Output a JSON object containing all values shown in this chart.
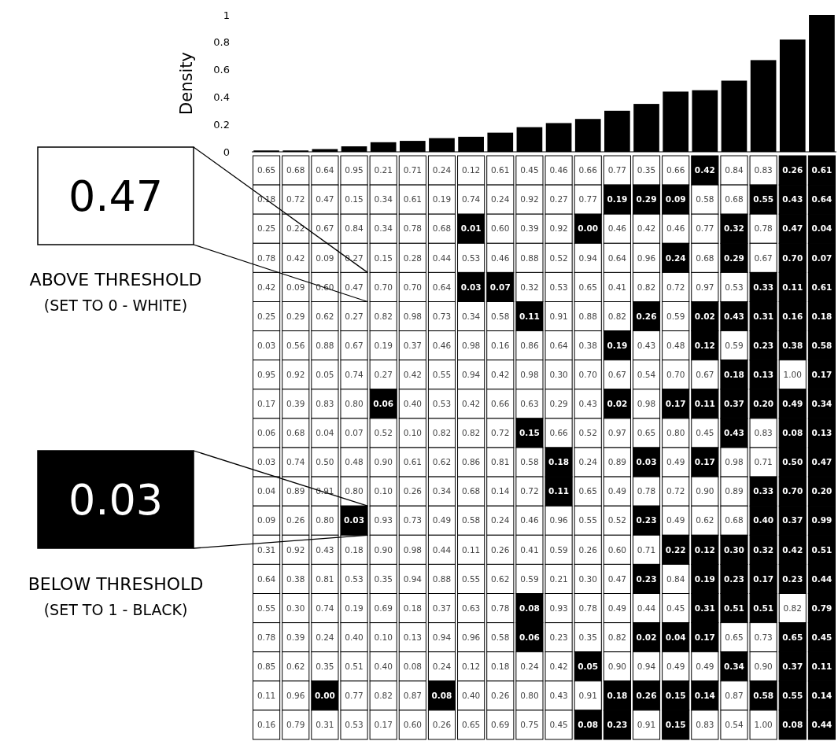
{
  "chart_data": [
    {
      "type": "bar",
      "ylabel": "Density",
      "categories": [
        null,
        null,
        null,
        null,
        null,
        null,
        null,
        null,
        null,
        null,
        null,
        null,
        null,
        null,
        null,
        null,
        null,
        null,
        null,
        null
      ],
      "values": [
        0.01,
        0.01,
        0.02,
        0.04,
        0.07,
        0.08,
        0.1,
        0.11,
        0.14,
        0.18,
        0.21,
        0.24,
        0.3,
        0.35,
        0.44,
        0.45,
        0.52,
        0.67,
        0.82,
        1.0
      ],
      "color": "#000000",
      "ylim": [
        0,
        1
      ],
      "yticks": [
        0,
        0.2,
        0.4,
        0.6,
        0.8,
        1
      ],
      "tick_labels": "y",
      "grid": false
    },
    {
      "type": "heatmap",
      "categories": [
        null,
        null,
        null,
        null,
        null,
        null,
        null,
        null,
        null,
        null,
        null,
        null,
        null,
        null,
        null,
        null,
        null,
        null,
        null,
        null
      ],
      "y_categories": [
        null,
        null,
        null,
        null,
        null,
        null,
        null,
        null,
        null,
        null,
        null,
        null,
        null,
        null,
        null,
        null,
        null,
        null,
        null,
        null
      ],
      "tick_labels": false,
      "cells": [
        [
          0.65,
          0.68,
          0.64,
          0.95,
          0.21,
          0.71,
          0.24,
          0.12,
          0.61,
          0.45,
          0.46,
          0.66,
          0.77,
          0.35,
          0.66,
          0.42,
          0.84,
          0.83,
          0.26,
          0.61
        ],
        [
          0.18,
          0.72,
          0.47,
          0.15,
          0.34,
          0.61,
          0.19,
          0.74,
          0.24,
          0.92,
          0.27,
          0.77,
          0.19,
          0.29,
          0.09,
          0.58,
          0.68,
          0.55,
          0.43,
          0.64
        ],
        [
          0.25,
          0.22,
          0.67,
          0.84,
          0.34,
          0.78,
          0.68,
          0.01,
          0.6,
          0.39,
          0.92,
          0.0,
          0.46,
          0.42,
          0.46,
          0.77,
          0.32,
          0.78,
          0.47,
          0.04
        ],
        [
          0.78,
          0.42,
          0.09,
          0.27,
          0.15,
          0.28,
          0.44,
          0.53,
          0.46,
          0.88,
          0.52,
          0.94,
          0.64,
          0.96,
          0.24,
          0.68,
          0.29,
          0.67,
          0.7,
          0.07
        ],
        [
          0.42,
          0.09,
          0.6,
          0.47,
          0.7,
          0.7,
          0.64,
          0.03,
          0.07,
          0.32,
          0.53,
          0.65,
          0.41,
          0.82,
          0.72,
          0.97,
          0.53,
          0.33,
          0.11,
          0.61
        ],
        [
          0.25,
          0.29,
          0.62,
          0.27,
          0.82,
          0.98,
          0.73,
          0.34,
          0.58,
          0.11,
          0.91,
          0.88,
          0.82,
          0.26,
          0.59,
          0.02,
          0.43,
          0.31,
          0.16,
          0.18
        ],
        [
          0.03,
          0.56,
          0.88,
          0.67,
          0.19,
          0.37,
          0.46,
          0.98,
          0.16,
          0.86,
          0.64,
          0.38,
          0.19,
          0.43,
          0.48,
          0.12,
          0.59,
          0.23,
          0.38,
          0.58
        ],
        [
          0.95,
          0.92,
          0.05,
          0.74,
          0.27,
          0.42,
          0.55,
          0.94,
          0.42,
          0.98,
          0.3,
          0.7,
          0.67,
          0.54,
          0.7,
          0.67,
          0.18,
          0.13,
          1.0,
          0.17
        ],
        [
          0.17,
          0.39,
          0.83,
          0.8,
          0.06,
          0.4,
          0.53,
          0.42,
          0.66,
          0.63,
          0.29,
          0.43,
          0.02,
          0.98,
          0.17,
          0.11,
          0.37,
          0.2,
          0.49,
          0.34
        ],
        [
          0.06,
          0.68,
          0.04,
          0.07,
          0.52,
          0.1,
          0.82,
          0.82,
          0.72,
          0.15,
          0.66,
          0.52,
          0.97,
          0.65,
          0.8,
          0.45,
          0.43,
          0.83,
          0.08,
          0.13
        ],
        [
          0.03,
          0.74,
          0.5,
          0.48,
          0.9,
          0.61,
          0.62,
          0.86,
          0.81,
          0.58,
          0.18,
          0.24,
          0.89,
          0.03,
          0.49,
          0.17,
          0.98,
          0.71,
          0.5,
          0.47
        ],
        [
          0.04,
          0.89,
          0.91,
          0.8,
          0.1,
          0.26,
          0.34,
          0.68,
          0.14,
          0.72,
          0.11,
          0.65,
          0.49,
          0.78,
          0.72,
          0.9,
          0.89,
          0.33,
          0.7,
          0.2
        ],
        [
          0.09,
          0.26,
          0.8,
          0.03,
          0.93,
          0.73,
          0.49,
          0.58,
          0.24,
          0.46,
          0.96,
          0.55,
          0.52,
          0.23,
          0.49,
          0.62,
          0.68,
          0.4,
          0.37,
          0.99
        ],
        [
          0.31,
          0.92,
          0.43,
          0.18,
          0.9,
          0.98,
          0.44,
          0.11,
          0.26,
          0.41,
          0.59,
          0.26,
          0.6,
          0.71,
          0.22,
          0.12,
          0.3,
          0.32,
          0.42,
          0.51
        ],
        [
          0.64,
          0.38,
          0.81,
          0.53,
          0.35,
          0.94,
          0.88,
          0.55,
          0.62,
          0.59,
          0.21,
          0.3,
          0.47,
          0.23,
          0.84,
          0.19,
          0.23,
          0.17,
          0.23,
          0.44
        ],
        [
          0.55,
          0.3,
          0.74,
          0.19,
          0.69,
          0.18,
          0.37,
          0.63,
          0.78,
          0.08,
          0.93,
          0.78,
          0.49,
          0.44,
          0.45,
          0.31,
          0.51,
          0.51,
          0.82,
          0.79
        ],
        [
          0.78,
          0.39,
          0.24,
          0.4,
          0.1,
          0.13,
          0.94,
          0.96,
          0.58,
          0.06,
          0.23,
          0.35,
          0.82,
          0.02,
          0.04,
          0.17,
          0.65,
          0.73,
          0.65,
          0.45
        ],
        [
          0.85,
          0.62,
          0.35,
          0.51,
          0.4,
          0.08,
          0.24,
          0.12,
          0.18,
          0.24,
          0.42,
          0.05,
          0.9,
          0.94,
          0.49,
          0.49,
          0.34,
          0.9,
          0.37,
          0.11
        ],
        [
          0.11,
          0.96,
          0.0,
          0.77,
          0.82,
          0.87,
          0.08,
          0.4,
          0.26,
          0.8,
          0.43,
          0.91,
          0.18,
          0.26,
          0.15,
          0.14,
          0.87,
          0.58,
          0.55,
          0.14
        ],
        [
          0.16,
          0.79,
          0.31,
          0.53,
          0.17,
          0.6,
          0.26,
          0.65,
          0.69,
          0.75,
          0.45,
          0.08,
          0.23,
          0.91,
          0.15,
          0.83,
          0.54,
          1.0,
          0.08,
          0.44
        ]
      ],
      "cell_labels": [
        [
          "0.65",
          "0.68",
          "0.64",
          "0.95",
          "0.21",
          "0.71",
          "0.24",
          "0.12",
          "0.61",
          "0.45",
          "0.46",
          "0.66",
          "0.77",
          "0.35",
          "0.66",
          "0.42",
          "0.84",
          "0.83",
          "0.26",
          "0.61"
        ],
        [
          "0.18",
          "0.72",
          "0.47",
          "0.15",
          "0.34",
          "0.61",
          "0.19",
          "0.74",
          "0.24",
          "0.92",
          "0.27",
          "0.77",
          "0.19",
          "0.29",
          "0.09",
          "0.58",
          "0.68",
          "0.55",
          "0.43",
          "0.64"
        ],
        [
          "0.25",
          "0.22",
          "0.67",
          "0.84",
          "0.34",
          "0.78",
          "0.68",
          "0.01",
          "0.60",
          "0.39",
          "0.92",
          "0.00",
          "0.46",
          "0.42",
          "0.46",
          "0.77",
          "0.32",
          "0.78",
          "0.47",
          "0.04"
        ],
        [
          "0.78",
          "0.42",
          "0.09",
          "0.27",
          "0.15",
          "0.28",
          "0.44",
          "0.53",
          "0.46",
          "0.88",
          "0.52",
          "0.94",
          "0.64",
          "0.96",
          "0.24",
          "0.68",
          "0.29",
          "0.67",
          "0.70",
          "0.07"
        ],
        [
          "0.42",
          "0.09",
          "0.60",
          "0.47",
          "0.70",
          "0.70",
          "0.64",
          "0.03",
          "0.07",
          "0.32",
          "0.53",
          "0.65",
          "0.41",
          "0.82",
          "0.72",
          "0.97",
          "0.53",
          "0.33",
          "0.11",
          "0.61"
        ],
        [
          "0.25",
          "0.29",
          "0.62",
          "0.27",
          "0.82",
          "0.98",
          "0.73",
          "0.34",
          "0.58",
          "0.11",
          "0.91",
          "0.88",
          "0.82",
          "0.26",
          "0.59",
          "0.02",
          "0.43",
          "0.31",
          "0.16",
          "0.18"
        ],
        [
          "0.03",
          "0.56",
          "0.88",
          "0.67",
          "0.19",
          "0.37",
          "0.46",
          "0.98",
          "0.16",
          "0.86",
          "0.64",
          "0.38",
          "0.19",
          "0.43",
          "0.48",
          "0.12",
          "0.59",
          "0.23",
          "0.38",
          "0.58"
        ],
        [
          "0.95",
          "0.92",
          "0.05",
          "0.74",
          "0.27",
          "0.42",
          "0.55",
          "0.94",
          "0.42",
          "0.98",
          "0.30",
          "0.70",
          "0.67",
          "0.54",
          "0.70",
          "0.67",
          "0.18",
          "0.13",
          "1.00",
          "0.17"
        ],
        [
          "0.17",
          "0.39",
          "0.83",
          "0.80",
          "0.06",
          "0.40",
          "0.53",
          "0.42",
          "0.66",
          "0.63",
          "0.29",
          "0.43",
          "0.02",
          "0.98",
          "0.17",
          "0.11",
          "0.37",
          "0.20",
          "0.49",
          "0.34"
        ],
        [
          "0.06",
          "0.68",
          "0.04",
          "0.07",
          "0.52",
          "0.10",
          "0.82",
          "0.82",
          "0.72",
          "0.15",
          "0.66",
          "0.52",
          "0.97",
          "0.65",
          "0.80",
          "0.45",
          "0.43",
          "0.83",
          "0.08",
          "0.13"
        ],
        [
          "0.03",
          "0.74",
          "0.50",
          "0.48",
          "0.90",
          "0.61",
          "0.62",
          "0.86",
          "0.81",
          "0.58",
          "0.18",
          "0.24",
          "0.89",
          "0.03",
          "0.49",
          "0.17",
          "0.98",
          "0.71",
          "0.50",
          "0.47"
        ],
        [
          "0.04",
          "0.89",
          "0.91",
          "0.80",
          "0.10",
          "0.26",
          "0.34",
          "0.68",
          "0.14",
          "0.72",
          "0.11",
          "0.65",
          "0.49",
          "0.78",
          "0.72",
          "0.90",
          "0.89",
          "0.33",
          "0.70",
          "0.20"
        ],
        [
          "0.09",
          "0.26",
          "0.80",
          "0.03",
          "0.93",
          "0.73",
          "0.49",
          "0.58",
          "0.24",
          "0.46",
          "0.96",
          "0.55",
          "0.52",
          "0.23",
          "0.49",
          "0.62",
          "0.68",
          "0.40",
          "0.37",
          "0.99"
        ],
        [
          "0.31",
          "0.92",
          "0.43",
          "0.18",
          "0.90",
          "0.98",
          "0.44",
          "0.11",
          "0.26",
          "0.41",
          "0.59",
          "0.26",
          "0.60",
          "0.71",
          "0.22",
          "0.12",
          "0.30",
          "0.32",
          "0.42",
          "0.51"
        ],
        [
          "0.64",
          "0.38",
          "0.81",
          "0.53",
          "0.35",
          "0.94",
          "0.88",
          "0.55",
          "0.62",
          "0.59",
          "0.21",
          "0.30",
          "0.47",
          "0.23",
          "0.84",
          "0.19",
          "0.23",
          "0.17",
          "0.23",
          "0.44"
        ],
        [
          "0.55",
          "0.30",
          "0.74",
          "0.19",
          "0.69",
          "0.18",
          "0.37",
          "0.63",
          "0.78",
          "0.08",
          "0.93",
          "0.78",
          "0.49",
          "0.44",
          "0.45",
          "0.31",
          "0.51",
          "0.51",
          "0.82",
          "0.79"
        ],
        [
          "0.78",
          "0.39",
          "0.24",
          "0.40",
          "0.10",
          "0.13",
          "0.94",
          "0.96",
          "0.58",
          "0.06",
          "0.23",
          "0.35",
          "0.82",
          "0.02",
          "0.04",
          "0.17",
          "0.65",
          "0.73",
          "0.65",
          "0.45"
        ],
        [
          "0.85",
          "0.62",
          "0.35",
          "0.51",
          "0.40",
          "0.08",
          "0.24",
          "0.12",
          "0.18",
          "0.24",
          "0.42",
          "0.05",
          "0.90",
          "0.94",
          "0.49",
          "0.49",
          "0.34",
          "0.90",
          "0.37",
          "0.11"
        ],
        [
          "0.11",
          "0.96",
          "0.00",
          "0.77",
          "0.82",
          "0.87",
          "0.08",
          "0.40",
          "0.26",
          "0.80",
          "0.43",
          "0.91",
          "0.18",
          "0.26",
          "0.15",
          "0.14",
          "0.87",
          "0.58",
          "0.55",
          "0.14"
        ],
        [
          "0.16",
          "0.79",
          "0.31",
          "0.53",
          "0.17",
          "0.60",
          "0.26",
          "0.65",
          "0.69",
          "0.75",
          "0.45",
          "0.08",
          "0.23",
          "0.91",
          "0.15",
          "0.83",
          "0.54",
          "1.00",
          "0.08",
          "0.44"
        ]
      ],
      "annotations": [
        "0.47",
        "ABOVE THRESHOLD",
        "(SET TO 0 - WHITE)",
        "0.03",
        "BELOW THRESHOLD",
        "(SET TO 1 - BLACK)"
      ]
    }
  ]
}
